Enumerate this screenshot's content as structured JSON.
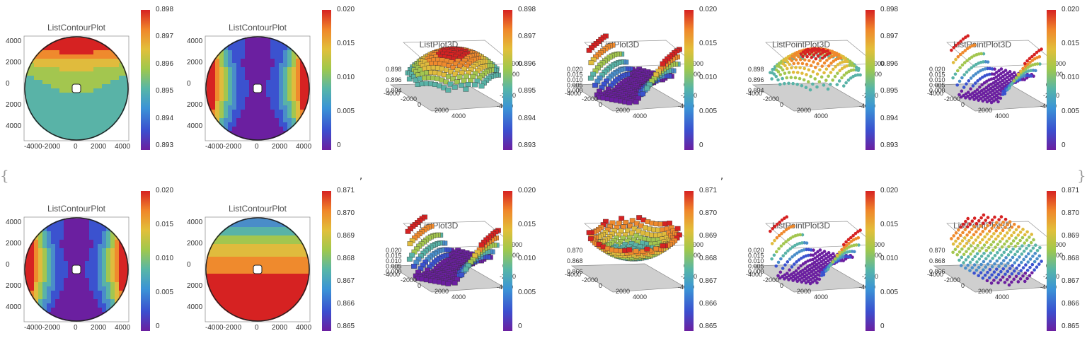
{
  "delimiters": {
    "open": "{",
    "close": "}",
    "comma": ","
  },
  "colors": {
    "purple": "#6b1fa0",
    "blue": "#3b52cf",
    "steel": "#4a8dc9",
    "teal": "#59b3a7",
    "green": "#a3c64f",
    "yellow": "#e0bb3d",
    "orange": "#ef8a2d",
    "red": "#d62222"
  },
  "axis_ticks": {
    "contour_y": [
      "4000",
      "2000",
      "0",
      "2000",
      "4000"
    ],
    "contour_x": [
      "-4000-2000",
      "0",
      "2000",
      "4000"
    ],
    "iso_left": [
      "-4000",
      "-2000",
      "0",
      "2000",
      "4000"
    ],
    "iso_right": [
      "4000",
      "2000",
      "0",
      "-2000",
      "-4000"
    ]
  },
  "chart_data": [
    {
      "type": "heatmap",
      "title": "ListContourPlot",
      "plot_kind": "contour",
      "pattern": "top-warm",
      "colorbar": [
        "0.898",
        "0.897",
        "0.896",
        "0.895",
        "0.894",
        "0.893"
      ],
      "zrange": [
        0.893,
        0.898
      ]
    },
    {
      "type": "heatmap",
      "title": "ListContourPlot",
      "plot_kind": "contour",
      "pattern": "saddle",
      "colorbar": [
        "0.020",
        "0.015",
        "0.010",
        "0.005",
        "0"
      ],
      "zrange": [
        0,
        0.02
      ]
    },
    {
      "type": "heatmap",
      "title": "ListPlot3D",
      "plot_kind": "surface3d",
      "pattern": "dome",
      "zticks": [
        "0.898",
        "0.896",
        "0.894"
      ],
      "colorbar": [
        "0.898",
        "0.897",
        "0.896",
        "0.895",
        "0.894",
        "0.893"
      ],
      "zrange": [
        0.893,
        0.898
      ]
    },
    {
      "type": "heatmap",
      "title": "ListPlot3D",
      "plot_kind": "surface3d",
      "pattern": "saddle",
      "zticks": [
        "0.020",
        "0.015",
        "0.010",
        "0.005",
        "0.000"
      ],
      "colorbar": [
        "0.020",
        "0.015",
        "0.010",
        "0.005",
        "0"
      ],
      "zrange": [
        0,
        0.02
      ]
    },
    {
      "type": "heatmap",
      "title": "ListPointPlot3D",
      "plot_kind": "points3d",
      "pattern": "dome",
      "zticks": [
        "0.898",
        "0.896",
        "0.894"
      ],
      "colorbar": [
        "0.898",
        "0.897",
        "0.896",
        "0.895",
        "0.894",
        "0.893"
      ],
      "zrange": [
        0.893,
        0.898
      ]
    },
    {
      "type": "heatmap",
      "title": "ListPointPlot3D",
      "plot_kind": "points3d",
      "pattern": "saddle",
      "zticks": [
        "0.020",
        "0.015",
        "0.010",
        "0.005",
        "0.000"
      ],
      "colorbar": [
        "0.020",
        "0.015",
        "0.010",
        "0.005",
        "0"
      ],
      "zrange": [
        0,
        0.02
      ]
    },
    {
      "type": "heatmap",
      "title": "ListContourPlot",
      "plot_kind": "contour",
      "pattern": "saddle",
      "colorbar": [
        "0.020",
        "0.015",
        "0.010",
        "0.005",
        "0"
      ],
      "zrange": [
        0,
        0.02
      ]
    },
    {
      "type": "heatmap",
      "title": "ListContourPlot",
      "plot_kind": "contour",
      "pattern": "bottom-warm",
      "colorbar": [
        "0.871",
        "0.870",
        "0.869",
        "0.868",
        "0.867",
        "0.866",
        "0.865"
      ],
      "zrange": [
        0.865,
        0.871
      ]
    },
    {
      "type": "heatmap",
      "title": "ListPlot3D",
      "plot_kind": "surface3d",
      "pattern": "saddle",
      "zticks": [
        "0.020",
        "0.015",
        "0.010",
        "0.005",
        "0.000"
      ],
      "colorbar": [
        "0.020",
        "0.015",
        "0.010",
        "0.005",
        "0"
      ],
      "zrange": [
        0,
        0.02
      ]
    },
    {
      "type": "heatmap",
      "title": "ListPlot3D",
      "plot_kind": "surface3d",
      "pattern": "bowl",
      "zticks": [
        "0.870",
        "0.868",
        "0.866"
      ],
      "colorbar": [
        "0.871",
        "0.870",
        "0.869",
        "0.868",
        "0.867",
        "0.866",
        "0.865"
      ],
      "zrange": [
        0.865,
        0.871
      ]
    },
    {
      "type": "heatmap",
      "title": "ListPointPlot3D",
      "plot_kind": "points3d",
      "pattern": "saddle",
      "zticks": [
        "0.020",
        "0.015",
        "0.010",
        "0.005",
        "0.000"
      ],
      "colorbar": [
        "0.020",
        "0.015",
        "0.010",
        "0.005",
        "0"
      ],
      "zrange": [
        0,
        0.02
      ]
    },
    {
      "type": "heatmap",
      "title": "ListPointPlot3D",
      "plot_kind": "points3d",
      "pattern": "sheet",
      "zticks": [
        "0.870",
        "0.868",
        "0.866"
      ],
      "colorbar": [
        "0.871",
        "0.870",
        "0.869",
        "0.868",
        "0.867",
        "0.866",
        "0.865"
      ],
      "zrange": [
        0.865,
        0.871
      ]
    }
  ]
}
